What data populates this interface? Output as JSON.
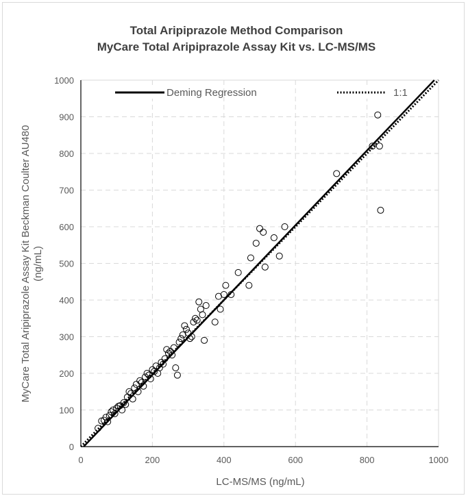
{
  "chart_data": {
    "type": "scatter",
    "title": "Total Aripiprazole Method Comparison",
    "subtitle": "MyCare Total Aripiprazole Assay Kit vs. LC-MS/MS",
    "xlabel": "LC-MS/MS (ng/mL)",
    "ylabel": [
      "MyCare Total  Aripiprazole  Assay Kit Beckman Coulter AU480",
      "(ng/mL)"
    ],
    "xlim": [
      0,
      1000
    ],
    "ylim": [
      0,
      1000
    ],
    "xticks": [
      "0",
      "200",
      "400",
      "600",
      "800",
      "1000"
    ],
    "yticks": [
      "0",
      "100",
      "200",
      "300",
      "400",
      "500",
      "600",
      "700",
      "800",
      "900",
      "1000"
    ],
    "grid": true,
    "legend": [
      {
        "name": "Deming Regression",
        "style": "solid"
      },
      {
        "name": "1:1",
        "style": "dotted"
      }
    ],
    "lines": {
      "deming": {
        "slope": 1.02,
        "intercept": -8
      },
      "identity": {
        "slope": 1.0,
        "intercept": 0
      }
    },
    "points": [
      [
        48,
        50
      ],
      [
        58,
        70
      ],
      [
        65,
        72
      ],
      [
        70,
        80
      ],
      [
        75,
        68
      ],
      [
        80,
        85
      ],
      [
        85,
        95
      ],
      [
        90,
        100
      ],
      [
        95,
        90
      ],
      [
        100,
        105
      ],
      [
        105,
        110
      ],
      [
        110,
        112
      ],
      [
        115,
        100
      ],
      [
        120,
        120
      ],
      [
        125,
        115
      ],
      [
        130,
        135
      ],
      [
        135,
        150
      ],
      [
        140,
        145
      ],
      [
        145,
        130
      ],
      [
        150,
        160
      ],
      [
        155,
        170
      ],
      [
        160,
        150
      ],
      [
        165,
        180
      ],
      [
        170,
        175
      ],
      [
        175,
        165
      ],
      [
        180,
        190
      ],
      [
        185,
        200
      ],
      [
        190,
        195
      ],
      [
        195,
        185
      ],
      [
        200,
        210
      ],
      [
        205,
        205
      ],
      [
        210,
        220
      ],
      [
        215,
        200
      ],
      [
        220,
        215
      ],
      [
        225,
        230
      ],
      [
        230,
        225
      ],
      [
        235,
        240
      ],
      [
        240,
        265
      ],
      [
        245,
        255
      ],
      [
        250,
        260
      ],
      [
        255,
        250
      ],
      [
        260,
        270
      ],
      [
        265,
        215
      ],
      [
        270,
        195
      ],
      [
        275,
        285
      ],
      [
        280,
        295
      ],
      [
        285,
        305
      ],
      [
        290,
        330
      ],
      [
        295,
        320
      ],
      [
        300,
        310
      ],
      [
        305,
        295
      ],
      [
        310,
        300
      ],
      [
        315,
        340
      ],
      [
        320,
        350
      ],
      [
        325,
        345
      ],
      [
        330,
        395
      ],
      [
        335,
        375
      ],
      [
        340,
        360
      ],
      [
        345,
        290
      ],
      [
        350,
        385
      ],
      [
        375,
        340
      ],
      [
        385,
        410
      ],
      [
        390,
        375
      ],
      [
        400,
        415
      ],
      [
        405,
        440
      ],
      [
        420,
        415
      ],
      [
        440,
        475
      ],
      [
        470,
        440
      ],
      [
        475,
        515
      ],
      [
        490,
        555
      ],
      [
        500,
        595
      ],
      [
        510,
        585
      ],
      [
        515,
        490
      ],
      [
        540,
        570
      ],
      [
        555,
        520
      ],
      [
        570,
        600
      ],
      [
        715,
        745
      ],
      [
        815,
        820
      ],
      [
        830,
        905
      ],
      [
        835,
        820
      ],
      [
        838,
        645
      ]
    ]
  }
}
